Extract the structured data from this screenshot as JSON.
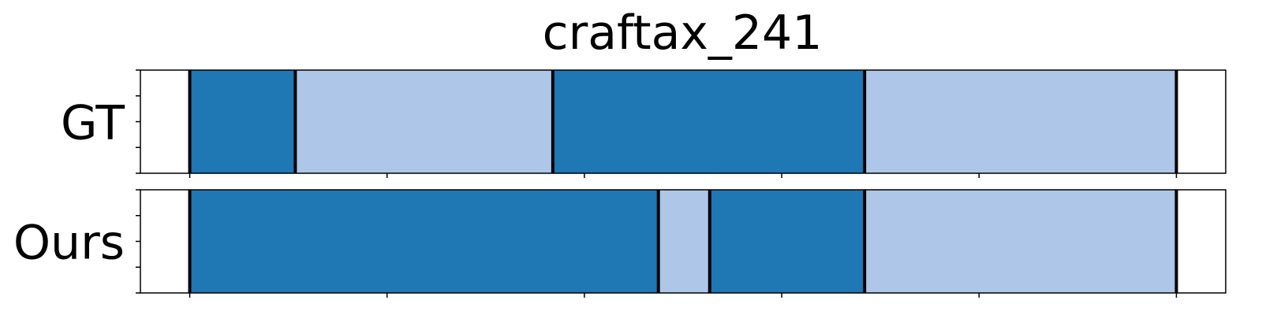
{
  "chart_data": {
    "type": "segmentation",
    "title": "craftax_241",
    "xlim": [
      -0.5,
      10.5
    ],
    "colors": {
      "dark": "#1f77b4",
      "light": "#aec7e8"
    },
    "rows": [
      {
        "name": "GT",
        "segments": [
          {
            "start": 0.0,
            "end": 1.07,
            "class": "dark"
          },
          {
            "start": 1.07,
            "end": 3.68,
            "class": "light"
          },
          {
            "start": 3.68,
            "end": 6.84,
            "class": "dark"
          },
          {
            "start": 6.84,
            "end": 10.0,
            "class": "light"
          }
        ]
      },
      {
        "name": "Ours",
        "segments": [
          {
            "start": 0.0,
            "end": 4.75,
            "class": "dark"
          },
          {
            "start": 4.75,
            "end": 5.27,
            "class": "light"
          },
          {
            "start": 5.27,
            "end": 6.84,
            "class": "dark"
          },
          {
            "start": 6.84,
            "end": 10.0,
            "class": "light"
          }
        ]
      }
    ],
    "xticks": [
      0,
      2,
      4,
      6,
      8,
      10
    ],
    "yticks_per_row": 5,
    "tick_labels_shown": false
  }
}
